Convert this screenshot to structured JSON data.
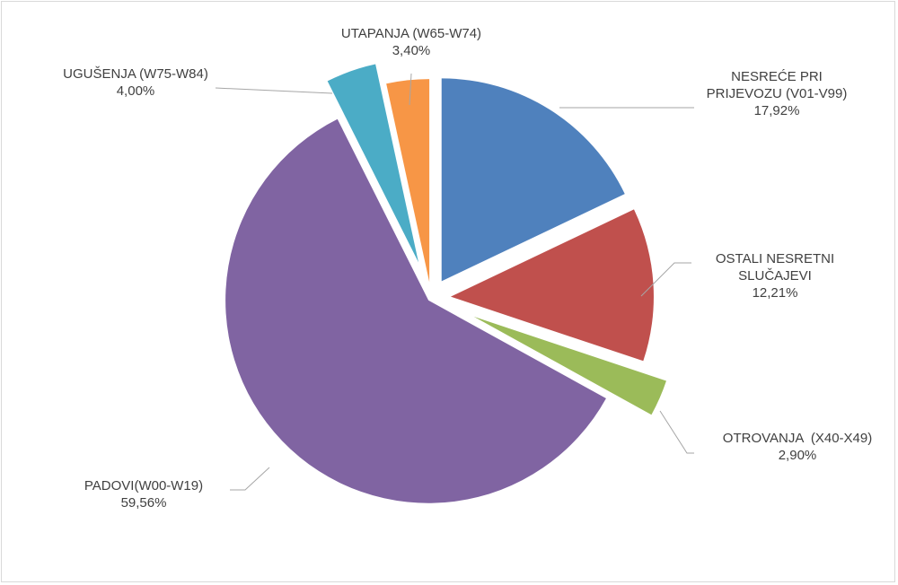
{
  "chart_data": {
    "type": "pie",
    "title": "",
    "series": [
      {
        "slices": [
          {
            "label_lines": [
              "NESREĆE PRI",
              "PRIJEVOZU (V01-V99)"
            ],
            "value_text": "17,92%",
            "value": 17.92,
            "color": "#4f81bd"
          },
          {
            "label_lines": [
              "OSTALI NESRETNI",
              "SLUČAJEVI"
            ],
            "value_text": "12,21%",
            "value": 12.21,
            "color": "#c0504d"
          },
          {
            "label_lines": [
              "OTROVANJA  (X40-X49)"
            ],
            "value_text": "2,90%",
            "value": 2.9,
            "color": "#9bbb59"
          },
          {
            "label_lines": [
              "PADOVI(W00-W19)"
            ],
            "value_text": "59,56%",
            "value": 59.56,
            "color": "#8064a2"
          },
          {
            "label_lines": [
              "UGUŠENJA (W75-W84)"
            ],
            "value_text": "4,00%",
            "value": 4.0,
            "color": "#4bacc6"
          },
          {
            "label_lines": [
              "UTAPANJA (W65-W74)"
            ],
            "value_text": "3,40%",
            "value": 3.4,
            "color": "#f79646"
          }
        ]
      }
    ],
    "exploded": true,
    "legend": "none"
  }
}
